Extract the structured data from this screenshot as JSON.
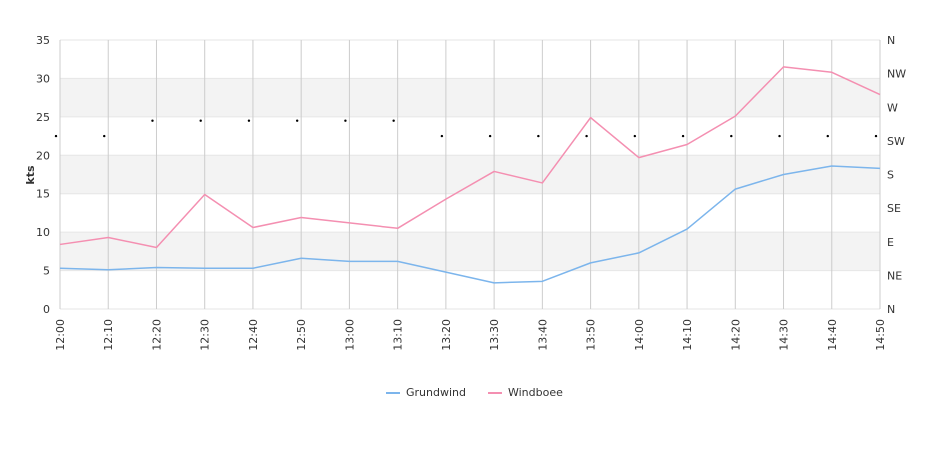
{
  "chart_data": {
    "type": "line",
    "ylabel": "kts",
    "ylim": [
      0,
      35
    ],
    "y_ticks": [
      0,
      5,
      10,
      15,
      20,
      25,
      30,
      35
    ],
    "x_labels": [
      "12:00",
      "12:10",
      "12:20",
      "12:30",
      "12:40",
      "12:50",
      "13:00",
      "13:10",
      "13:20",
      "13:30",
      "13:40",
      "13:50",
      "14:00",
      "14:10",
      "14:20",
      "14:30",
      "14:40",
      "14:50"
    ],
    "direction_labels": [
      "N",
      "NE",
      "E",
      "SE",
      "S",
      "SW",
      "W",
      "NW",
      "N"
    ],
    "grid": true,
    "legend_position": "bottom-center",
    "series": [
      {
        "name": "Grundwind",
        "color": "#7cb5ec",
        "values": [
          5.3,
          5.1,
          5.4,
          5.3,
          5.3,
          6.6,
          6.2,
          6.2,
          4.8,
          3.4,
          3.6,
          6.0,
          7.3,
          10.4,
          15.6,
          17.5,
          18.6,
          18.3
        ]
      },
      {
        "name": "Windboee",
        "color": "#f48fb1",
        "values": [
          8.4,
          9.3,
          8.0,
          14.9,
          10.6,
          11.9,
          11.2,
          10.5,
          14.3,
          17.9,
          16.4,
          24.9,
          19.7,
          21.4,
          25.1,
          31.5,
          30.8,
          27.9
        ]
      }
    ],
    "direction_points": {
      "color": "#000000",
      "values": [
        22.5,
        22.5,
        24.5,
        24.5,
        24.5,
        24.5,
        24.5,
        24.5,
        22.5,
        22.5,
        22.5,
        22.5,
        22.5,
        22.5,
        22.5,
        22.5,
        22.5,
        22.5
      ]
    }
  }
}
